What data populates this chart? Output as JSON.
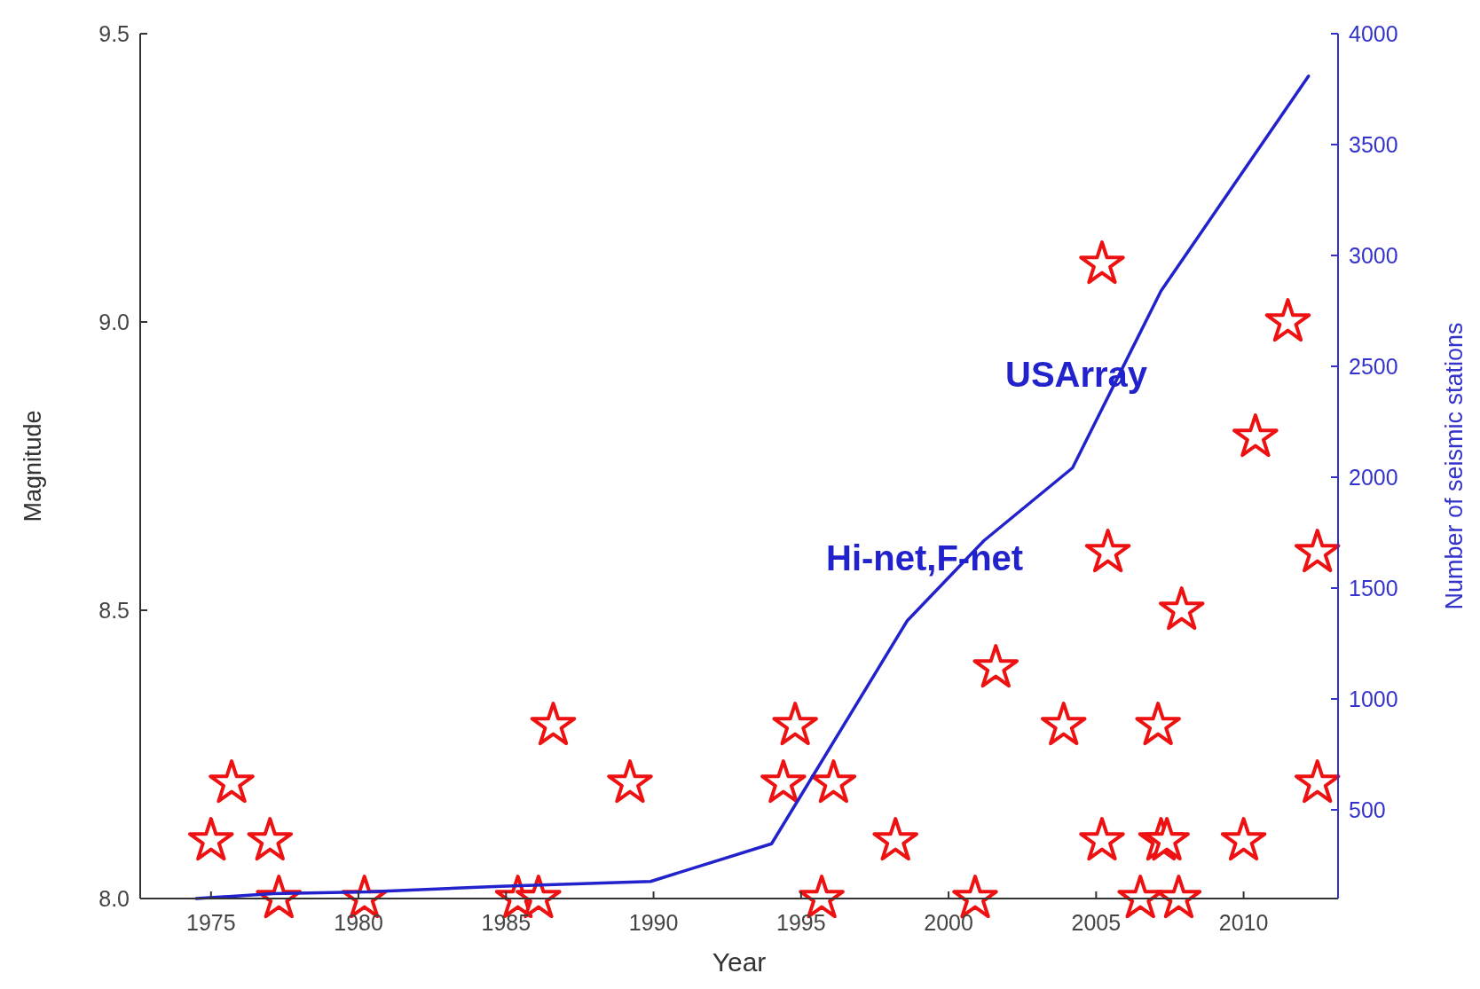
{
  "chart_data": {
    "type": "scatter",
    "xlabel": "Year",
    "ylabel": "Magnitude",
    "y2label": "Number of seismic stations",
    "xlim": [
      1972.6,
      2013.2
    ],
    "xticks": [
      1975,
      1980,
      1985,
      1990,
      1995,
      2000,
      2005,
      2010
    ],
    "ylim": [
      8,
      9.5
    ],
    "yticks": [
      {
        "value": 8,
        "label": "8.0"
      },
      8.5,
      {
        "value": 9,
        "label": "9.0"
      },
      9.5
    ],
    "y2lim": [
      100,
      4000
    ],
    "y2ticks": [
      500,
      1000,
      1500,
      2000,
      2500,
      3000,
      3500,
      4000
    ],
    "grid": false,
    "series": [
      {
        "marker": "star",
        "color": "#ee1111",
        "x": [
          1975.0,
          1975.7,
          1977.0,
          1977.3,
          1980.2,
          1985.4,
          1986.1,
          1986.6,
          1989.2,
          1994.4,
          1994.8,
          1995.7,
          1996.1,
          1998.2,
          2000.9,
          2001.6,
          2003.9,
          2005.2,
          2005.2,
          2005.4,
          2006.5,
          2007.1,
          2007.2,
          2007.4,
          2007.8,
          2007.9,
          2010.0,
          2010.4,
          2011.5,
          2012.5,
          2012.5
        ],
        "values": [
          8.1,
          8.2,
          8.1,
          8.0,
          8.0,
          8.0,
          8.0,
          8.3,
          8.2,
          8.2,
          8.3,
          8.0,
          8.2,
          8.1,
          8.0,
          8.4,
          8.3,
          9.1,
          8.1,
          8.6,
          8.0,
          8.3,
          8.1,
          8.1,
          8.0,
          8.5,
          8.1,
          8.8,
          9.0,
          8.6,
          8.2
        ]
      },
      {
        "type": "line",
        "axis": "y2",
        "marker": "none",
        "line_style": "solid",
        "color": "#2222cc",
        "x": [
          1974.5,
          1977.1,
          1980.3,
          1984.8,
          1989.9,
          1994.0,
          1998.6,
          2001.2,
          2004.2,
          2007.2,
          2012.2
        ],
        "values": [
          100,
          122,
          130,
          155,
          177,
          347,
          1353,
          1714,
          2042,
          2840,
          3809
        ]
      }
    ],
    "annotations": [
      "USArray",
      "Hi-net,F-net"
    ]
  }
}
